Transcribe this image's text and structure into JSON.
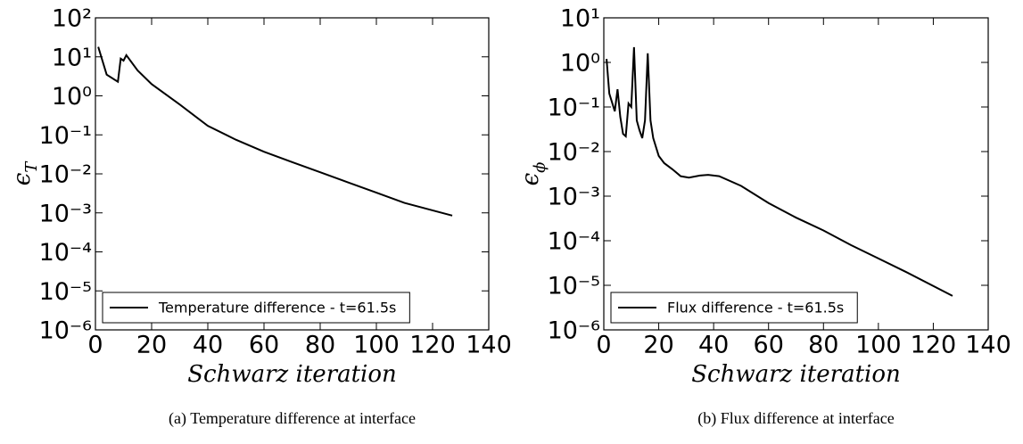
{
  "chart_data": [
    {
      "type": "line",
      "caption": "(a) Temperature difference at interface",
      "xlabel": "Schwarz iteration",
      "ylabel": "ϵ",
      "ylabel_subscript": "T",
      "x": [
        1,
        4,
        8,
        9,
        10,
        11,
        15,
        20,
        30,
        40,
        50,
        60,
        70,
        80,
        90,
        100,
        110,
        127
      ],
      "series": [
        {
          "name": "Temperature difference - t=61.5s",
          "color": "#000000",
          "values": [
            18,
            3.5,
            2.3,
            9,
            8,
            11,
            4.5,
            2.0,
            0.6,
            0.17,
            0.075,
            0.037,
            0.02,
            0.011,
            0.006,
            0.0033,
            0.0018,
            0.00085
          ]
        }
      ],
      "xlim": [
        0,
        140
      ],
      "xticks": [
        0,
        20,
        40,
        60,
        80,
        100,
        120,
        140
      ],
      "ylim": [
        1e-06,
        100
      ],
      "log_y": true,
      "yticks": [
        {
          "value": 1e-06,
          "label": "10⁻⁶"
        },
        {
          "value": 1e-05,
          "label": "10⁻⁵"
        },
        {
          "value": 0.0001,
          "label": "10⁻⁴"
        },
        {
          "value": 0.001,
          "label": "10⁻³"
        },
        {
          "value": 0.01,
          "label": "10⁻²"
        },
        {
          "value": 0.1,
          "label": "10⁻¹"
        },
        {
          "value": 1,
          "label": "10⁰"
        },
        {
          "value": 10,
          "label": "10¹"
        },
        {
          "value": 100,
          "label": "10²"
        }
      ],
      "legend": "lower left",
      "grid": false
    },
    {
      "type": "line",
      "caption": "(b) Flux difference at interface",
      "xlabel": "Schwarz iteration",
      "ylabel": "ϵ",
      "ylabel_subscript": "ϕ",
      "x": [
        1,
        2,
        4,
        5,
        6,
        7,
        8,
        9,
        10,
        11,
        12,
        13,
        14,
        15,
        16,
        17,
        18,
        20,
        22,
        25,
        28,
        31,
        35,
        38,
        42,
        50,
        60,
        70,
        80,
        90,
        100,
        110,
        127
      ],
      "series": [
        {
          "name": "Flux difference - t=61.5s",
          "color": "#000000",
          "values": [
            1.2,
            0.2,
            0.08,
            0.25,
            0.06,
            0.025,
            0.022,
            0.12,
            0.1,
            2.2,
            0.05,
            0.03,
            0.02,
            0.05,
            1.6,
            0.05,
            0.02,
            0.008,
            0.0055,
            0.004,
            0.0028,
            0.0026,
            0.0029,
            0.003,
            0.0028,
            0.0017,
            0.0007,
            0.00033,
            0.00017,
            8e-05,
            4e-05,
            2e-05,
            5.8e-06
          ]
        }
      ],
      "xlim": [
        0,
        140
      ],
      "xticks": [
        0,
        20,
        40,
        60,
        80,
        100,
        120,
        140
      ],
      "ylim": [
        1e-06,
        10
      ],
      "log_y": true,
      "yticks": [
        {
          "value": 1e-06,
          "label": "10⁻⁶"
        },
        {
          "value": 1e-05,
          "label": "10⁻⁵"
        },
        {
          "value": 0.0001,
          "label": "10⁻⁴"
        },
        {
          "value": 0.001,
          "label": "10⁻³"
        },
        {
          "value": 0.01,
          "label": "10⁻²"
        },
        {
          "value": 0.1,
          "label": "10⁻¹"
        },
        {
          "value": 1,
          "label": "10⁰"
        },
        {
          "value": 10,
          "label": "10¹"
        }
      ],
      "legend": "lower left",
      "grid": false
    }
  ]
}
